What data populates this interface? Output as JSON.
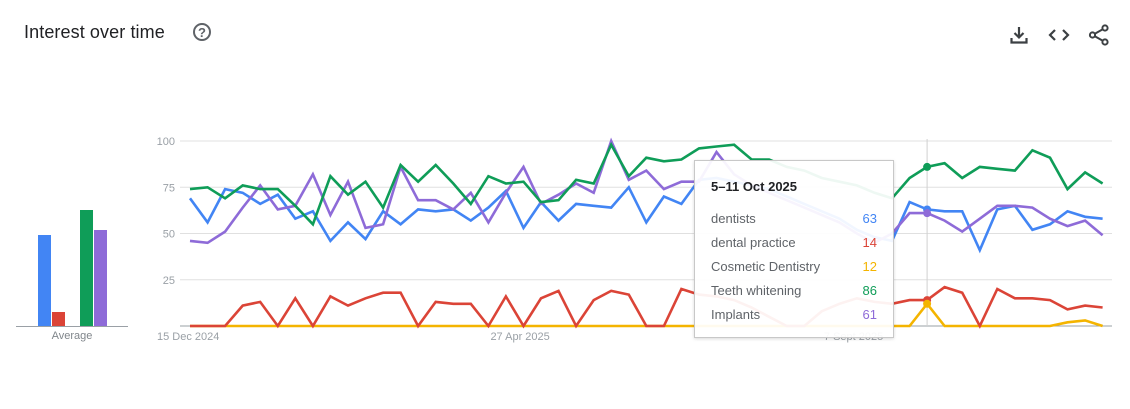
{
  "header": {
    "title": "Interest over time",
    "help_icon": "help-circle-icon",
    "actions": [
      {
        "name": "download-button",
        "icon": "download-icon"
      },
      {
        "name": "embed-button",
        "icon": "code-icon"
      },
      {
        "name": "share-button",
        "icon": "share-icon"
      }
    ]
  },
  "average": {
    "label": "Average",
    "bars": [
      {
        "term": "dentists",
        "value": 63,
        "color": "#4285f4"
      },
      {
        "term": "dental practice",
        "value": 10,
        "color": "#db4437"
      },
      {
        "term": "Cosmetic Dentistry",
        "value": 0,
        "color": "#f4b400"
      },
      {
        "term": "Teeth whitening",
        "value": 80,
        "color": "#0f9d58"
      },
      {
        "term": "Implants",
        "value": 66,
        "color": "#8e6bd8"
      }
    ]
  },
  "tooltip": {
    "date": "5–11 Oct 2025",
    "rows": [
      {
        "label": "dentists",
        "value": "63",
        "color": "#4285f4"
      },
      {
        "label": "dental practice",
        "value": "14",
        "color": "#db4437"
      },
      {
        "label": "Cosmetic Dentistry",
        "value": "12",
        "color": "#f4b400"
      },
      {
        "label": "Teeth whitening",
        "value": "86",
        "color": "#0f9d58"
      },
      {
        "label": "Implants",
        "value": "61",
        "color": "#8e6bd8"
      }
    ]
  },
  "chart_data": {
    "type": "line",
    "title": "Interest over time",
    "xlabel": "",
    "ylabel": "",
    "ylim": [
      0,
      100
    ],
    "yticks": [
      25,
      50,
      75,
      100
    ],
    "x_tick_labels": [
      {
        "index": 0,
        "label": "15 Dec 2024"
      },
      {
        "index": 19,
        "label": "27 Apr 2025"
      },
      {
        "index": 38,
        "label": "7 Sept 2025"
      }
    ],
    "grid": true,
    "hover_index": 42,
    "x": "weekly points from 15 Dec 2024 (53 weeks)",
    "series": [
      {
        "name": "dentists",
        "color": "#4285f4",
        "values": [
          69,
          56,
          74,
          72,
          66,
          71,
          58,
          62,
          46,
          56,
          47,
          62,
          55,
          63,
          62,
          63,
          57,
          64,
          73,
          53,
          67,
          57,
          66,
          65,
          64,
          75,
          56,
          70,
          66,
          79,
          80,
          78,
          76,
          74,
          70,
          66,
          62,
          58,
          52,
          48,
          46,
          67,
          63,
          62,
          62,
          41,
          63,
          65,
          52,
          55,
          62,
          59,
          58
        ]
      },
      {
        "name": "dental practice",
        "color": "#db4437",
        "values": [
          0,
          0,
          0,
          11,
          13,
          0,
          15,
          0,
          16,
          11,
          15,
          18,
          18,
          0,
          13,
          12,
          12,
          0,
          16,
          0,
          15,
          19,
          0,
          14,
          19,
          17,
          0,
          0,
          20,
          17,
          16,
          14,
          10,
          5,
          0,
          0,
          8,
          12,
          15,
          13,
          12,
          14,
          14,
          21,
          18,
          0,
          20,
          15,
          15,
          14,
          9,
          11,
          10
        ]
      },
      {
        "name": "Cosmetic Dentistry",
        "color": "#f4b400",
        "values": [
          0,
          0,
          0,
          0,
          0,
          0,
          0,
          0,
          0,
          0,
          0,
          0,
          0,
          0,
          0,
          0,
          0,
          0,
          0,
          0,
          0,
          0,
          0,
          0,
          0,
          0,
          0,
          0,
          0,
          0,
          0,
          0,
          0,
          0,
          0,
          0,
          0,
          0,
          0,
          0,
          0,
          0,
          12,
          0,
          0,
          0,
          0,
          0,
          0,
          0,
          2,
          3,
          0
        ]
      },
      {
        "name": "Teeth whitening",
        "color": "#0f9d58",
        "values": [
          74,
          75,
          69,
          76,
          74,
          74,
          65,
          55,
          81,
          71,
          78,
          64,
          87,
          78,
          87,
          77,
          66,
          81,
          77,
          78,
          67,
          68,
          79,
          77,
          98,
          81,
          91,
          89,
          90,
          96,
          97,
          98,
          90,
          90,
          86,
          84,
          80,
          78,
          76,
          72,
          69,
          80,
          86,
          88,
          80,
          86,
          85,
          84,
          95,
          91,
          74,
          83,
          77
        ]
      },
      {
        "name": "Implants",
        "color": "#8e6bd8",
        "values": [
          46,
          45,
          51,
          64,
          76,
          63,
          65,
          82,
          60,
          78,
          53,
          55,
          86,
          68,
          68,
          63,
          72,
          56,
          72,
          86,
          66,
          71,
          77,
          72,
          100,
          79,
          84,
          74,
          78,
          78,
          94,
          82,
          76,
          72,
          68,
          64,
          60,
          56,
          50,
          45,
          50,
          61,
          61,
          57,
          51,
          58,
          65,
          65,
          64,
          58,
          54,
          57,
          49
        ]
      }
    ]
  }
}
